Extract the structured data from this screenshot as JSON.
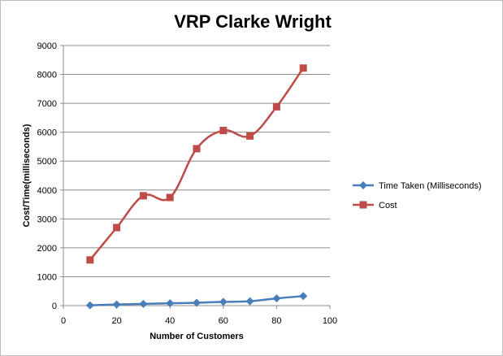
{
  "chart_data": {
    "type": "line",
    "title": "VRP Clarke Wright",
    "xlabel": "Number of Customers",
    "ylabel": "Cost/Time(milliseconds)",
    "xlim": [
      0,
      100
    ],
    "ylim": [
      0,
      9000
    ],
    "x_ticks": [
      0,
      20,
      40,
      60,
      80,
      100
    ],
    "y_ticks": [
      0,
      1000,
      2000,
      3000,
      4000,
      5000,
      6000,
      7000,
      8000,
      9000
    ],
    "grid": "horizontal",
    "legend_position": "right",
    "x": [
      10,
      20,
      30,
      40,
      50,
      60,
      70,
      80,
      90
    ],
    "series": [
      {
        "name": "Time Taken (Milliseconds)",
        "color": "#4a7ebb",
        "marker": "diamond",
        "values": [
          10,
          40,
          60,
          80,
          100,
          130,
          150,
          250,
          330
        ]
      },
      {
        "name": "Cost",
        "color": "#be4b48",
        "marker": "square",
        "values": [
          1580,
          2700,
          3800,
          3740,
          5430,
          6060,
          5870,
          6880,
          8220
        ]
      }
    ]
  }
}
